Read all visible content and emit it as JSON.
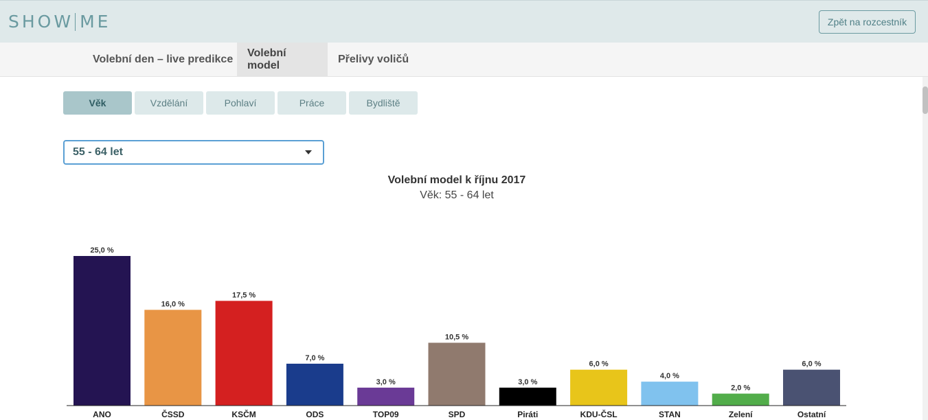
{
  "header": {
    "logo_left": "SHOW",
    "logo_right": "ME",
    "back_button": "Zpět na rozcestník"
  },
  "nav": {
    "tabs": [
      {
        "label": "Volební den – live predikce",
        "active": false
      },
      {
        "label": "Volební model",
        "active": true
      },
      {
        "label": "Přelivy voličů",
        "active": false
      }
    ]
  },
  "subtabs": [
    {
      "label": "Věk",
      "active": true
    },
    {
      "label": "Vzdělání",
      "active": false
    },
    {
      "label": "Pohlaví",
      "active": false
    },
    {
      "label": "Práce",
      "active": false
    },
    {
      "label": "Bydliště",
      "active": false
    }
  ],
  "filter": {
    "selected": "55 - 64 let"
  },
  "chart_data": {
    "type": "bar",
    "title": "Volební model k říjnu 2017",
    "subtitle": "Věk: 55 - 64 let",
    "categories": [
      "ANO",
      "ČSSD",
      "KSČM",
      "ODS",
      "TOP09",
      "SPD",
      "Piráti",
      "KDU-ČSL",
      "STAN",
      "Zelení",
      "Ostatní"
    ],
    "values": [
      25.0,
      16.0,
      17.5,
      7.0,
      3.0,
      10.5,
      3.0,
      6.0,
      4.0,
      2.0,
      6.0
    ],
    "labels": [
      "25,0 %",
      "16,0 %",
      "17,5 %",
      "7,0 %",
      "3,0 %",
      "10,5 %",
      "3,0 %",
      "6,0 %",
      "4,0 %",
      "2,0 %",
      "6,0 %"
    ],
    "colors": [
      "#241452",
      "#e89545",
      "#d42020",
      "#1a3c8c",
      "#6a3a96",
      "#907a6e",
      "#000000",
      "#e8c51a",
      "#80c2ee",
      "#52ad4a",
      "#4a5272"
    ],
    "ylim": [
      0,
      25
    ],
    "grid": false,
    "legend": "none"
  }
}
